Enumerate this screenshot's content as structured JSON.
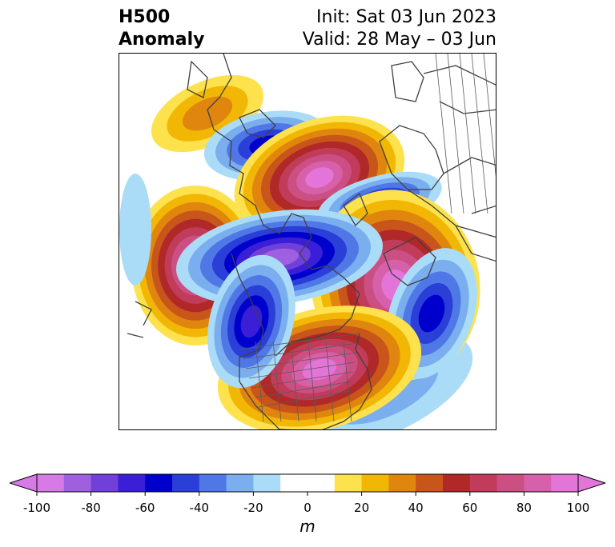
{
  "title": {
    "left_line1": "H500",
    "left_line2": "Anomaly",
    "right_line1": "Init: Sat 03 Jun 2023",
    "right_line2": "Valid: 28 May – 03 Jun"
  },
  "colorbar": {
    "unit": "m",
    "ticks": [
      "-100",
      "-80",
      "-60",
      "-40",
      "-20",
      "0",
      "20",
      "40",
      "60",
      "80",
      "100"
    ],
    "colors": [
      "#d77ae8",
      "#9e5fe0",
      "#7040d8",
      "#3b1fd6",
      "#0000cc",
      "#2a3ed8",
      "#4f78e6",
      "#7aaeef",
      "#aadcf8",
      "#ffffff",
      "#ffffff",
      "#fde24e",
      "#f2b705",
      "#e0860f",
      "#c8551a",
      "#b02828",
      "#c03c5a",
      "#cc4f84",
      "#d760aa",
      "#e374d8"
    ],
    "extend_low_color": "#d77ae8",
    "extend_high_color": "#e374d8"
  },
  "map": {
    "palette": {
      "pos1": "#fde24e",
      "pos2": "#f2b705",
      "pos3": "#e0860f",
      "pos4": "#c8551a",
      "pos5": "#b02828",
      "pos6": "#c03c5a",
      "pos7": "#cc4f84",
      "pos8": "#d760aa",
      "pos9": "#e374d8",
      "neg1": "#aadcf8",
      "neg2": "#7aaeef",
      "neg3": "#4f78e6",
      "neg4": "#2a3ed8",
      "neg5": "#0000cc",
      "neg6": "#3b1fd6",
      "neg7": "#7040d8",
      "neg8": "#9e5fe0",
      "neg9": "#d77ae8",
      "coastline": "#404040"
    }
  }
}
